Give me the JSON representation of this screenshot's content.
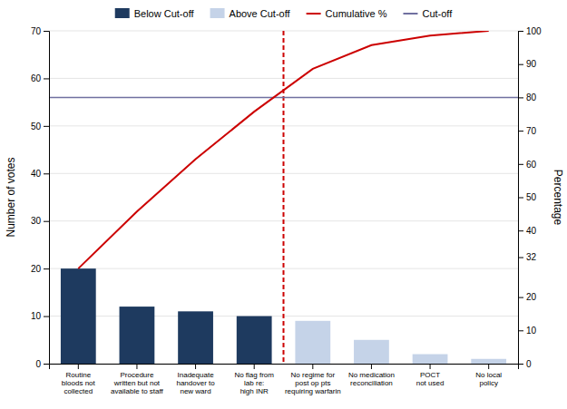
{
  "chart_data": {
    "type": "bar",
    "categories": [
      "Routine\nbloods not\ncollected",
      "Procedure\nwritten but not\navailable to staff",
      "Inadequate\nhandover to\nnew ward",
      "No flag from\nlab re:\nhigh INR",
      "No regime for\npost op pts\nrequiring warfarin",
      "No medication\nreconciliation",
      "POCT\nnot used",
      "No local\npolicy"
    ],
    "series": [
      {
        "name": "Below Cut-off",
        "type": "bar",
        "color": "#1e3a5f",
        "values": [
          20,
          12,
          11,
          10,
          null,
          null,
          null,
          null
        ]
      },
      {
        "name": "Above Cut-off",
        "type": "bar",
        "color": "#c5d3e8",
        "values": [
          null,
          null,
          null,
          null,
          9,
          5,
          2,
          1
        ]
      },
      {
        "name": "Cumulative %",
        "type": "line",
        "axis": "y2",
        "color": "#cc0000",
        "values": [
          28.57,
          45.71,
          61.43,
          75.71,
          88.57,
          95.71,
          98.57,
          100.0
        ]
      }
    ],
    "reference_lines": [
      {
        "name": "Cut-off",
        "value": 80,
        "axis": "y2",
        "color": "#7070a0"
      }
    ],
    "divider": {
      "color": "#cc0000",
      "line_style": "dashed"
    },
    "ylabel": "Number of votes",
    "y2label": "Percentage",
    "ylim": [
      0,
      70
    ],
    "yticks": [
      0,
      10,
      20,
      30,
      40,
      50,
      60,
      70
    ],
    "y2lim": [
      0,
      100
    ],
    "y2ticks": [
      0,
      10,
      20,
      32,
      40,
      50,
      60,
      70,
      80,
      90,
      100
    ],
    "grid": true,
    "legend": "top"
  }
}
